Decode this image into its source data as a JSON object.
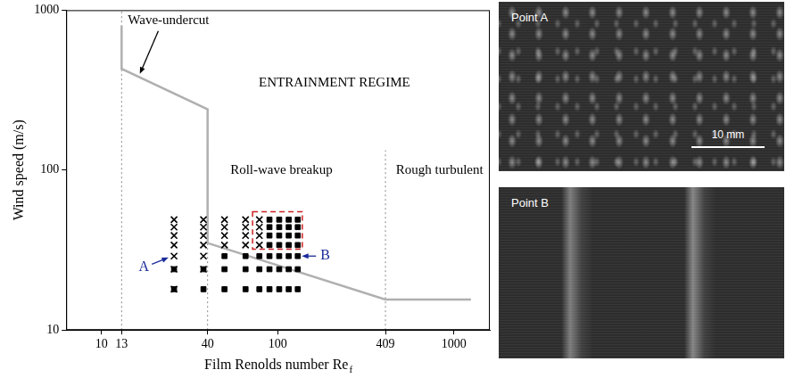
{
  "chart_data": {
    "type": "scatter",
    "x_label": "Film Renolds number Re",
    "x_label_subscript": "f",
    "y_label": "Wind speed (m/s)",
    "log": true,
    "grid": false,
    "xlim": [
      6.3,
      1600
    ],
    "ylim": [
      10,
      1000
    ],
    "xticks": [
      10,
      13,
      40,
      100,
      409,
      1000
    ],
    "yticks": [
      10,
      100,
      1000
    ],
    "series": [
      {
        "marker": "x",
        "color": "#000000",
        "x": [
          25.8,
          25.8,
          25.8,
          25.8,
          25.8,
          25.8,
          25.8,
          37.9,
          37.9,
          37.9,
          37.9,
          37.9,
          37.9,
          49.9,
          49.9,
          49.9,
          49.9,
          65.7,
          65.7,
          65.7,
          65.7,
          78.7,
          78.7,
          78.7,
          78.7
        ],
        "y": [
          49,
          44,
          39,
          34,
          29,
          24,
          18,
          49,
          44,
          39,
          34,
          29,
          24,
          49,
          44,
          39,
          34,
          49,
          44,
          39,
          34,
          49,
          44,
          39,
          34
        ]
      },
      {
        "marker": "square",
        "color": "#000000",
        "x": [
          25.8,
          25.8,
          37.9,
          37.9,
          49.9,
          49.9,
          49.9,
          65.7,
          65.7,
          65.7,
          78.7,
          78.7,
          78.7,
          89.8,
          89.8,
          89.8,
          89.8,
          89.8,
          89.8,
          89.8,
          102,
          102,
          102,
          102,
          102,
          102,
          102,
          115.5,
          115.5,
          115.5,
          115.5,
          115.5,
          115.5,
          115.5,
          130,
          130,
          130,
          130,
          130,
          130,
          130
        ],
        "y": [
          24,
          18,
          24,
          18,
          29,
          24,
          18,
          29,
          24,
          18,
          29,
          24,
          18,
          49,
          44,
          39,
          34,
          29,
          24,
          18,
          49,
          44,
          39,
          34,
          29,
          24,
          18,
          49,
          44,
          39,
          34,
          29,
          24,
          18,
          49,
          44,
          39,
          34,
          29,
          24,
          18
        ]
      }
    ],
    "boundary": {
      "color": "#b0b0b0",
      "x": [
        13,
        13,
        40,
        40,
        409,
        1250
      ],
      "y": [
        800,
        430,
        240,
        35,
        15.5,
        15.5
      ]
    },
    "dividers": [
      {
        "x": 13,
        "y": [
          10,
          1000
        ]
      },
      {
        "x": 40,
        "y": [
          10,
          133
        ]
      },
      {
        "x": 409,
        "y": [
          10,
          133
        ]
      }
    ],
    "highlight_box": {
      "color": "#cc2222",
      "x": [
        72,
        138
      ],
      "y": [
        32,
        55
      ]
    },
    "annotations": [
      {
        "text": "Wave-undercut",
        "x": 24,
        "y": 857,
        "color": "#000000",
        "arrow_from": [
          21,
          740
        ],
        "arrow_to": [
          16.5,
          400
        ]
      },
      {
        "text": "ENTRAINMENT REGIME",
        "x": 210,
        "y": 350,
        "color": "#000000"
      },
      {
        "text": "Roll-wave breakup",
        "x": 105,
        "y": 100,
        "color": "#000000"
      },
      {
        "text": "Rough turbulent",
        "x": 830,
        "y": 100,
        "color": "#000000"
      },
      {
        "text": "A",
        "x": 17.4,
        "y": 24.6,
        "color": "#1a2a9a",
        "arrow_from": [
          19.3,
          25.8
        ],
        "arrow_to": [
          24,
          28.4
        ]
      },
      {
        "text": "B",
        "x": 186,
        "y": 29,
        "color": "#1a2a9a",
        "arrow_from": [
          165,
          29
        ],
        "arrow_to": [
          137,
          29
        ]
      }
    ]
  },
  "photos": [
    {
      "label": "Point A",
      "scale_bar": "10 mm"
    },
    {
      "label": "Point B"
    }
  ]
}
